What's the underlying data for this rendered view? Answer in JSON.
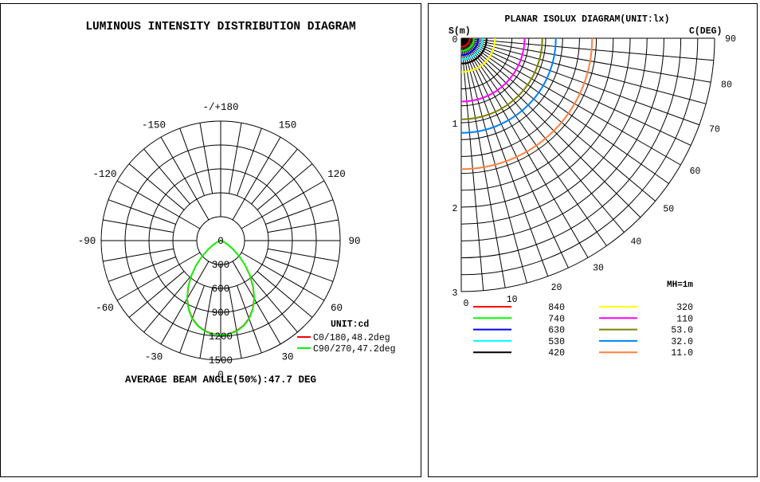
{
  "left_panel": {
    "title": "LUMINOUS INTENSITY DISTRIBUTION DIAGRAM",
    "unit_label": "UNIT:cd",
    "footer": "AVERAGE BEAM ANGLE(50%):47.7 DEG"
  },
  "right_panel": {
    "title": "PLANAR ISOLUX DIAGRAM(UNIT:lx)",
    "y_axis_label": "S(m)",
    "c_axis_label": "C(DEG)",
    "mh_label": "MH=1m"
  },
  "chart_data": [
    {
      "type": "polar",
      "title": "LUMINOUS INTENSITY DISTRIBUTION DIAGRAM",
      "angle_labels": [
        {
          "angle": 180,
          "text": "-/+180"
        },
        {
          "angle": 150,
          "text": "150"
        },
        {
          "angle": -150,
          "text": "-150"
        },
        {
          "angle": 120,
          "text": "120"
        },
        {
          "angle": -120,
          "text": "-120"
        },
        {
          "angle": 90,
          "text": "90"
        },
        {
          "angle": -90,
          "text": "-90"
        },
        {
          "angle": 60,
          "text": "60"
        },
        {
          "angle": -60,
          "text": "-60"
        },
        {
          "angle": 30,
          "text": "30"
        },
        {
          "angle": -30,
          "text": "-30"
        },
        {
          "angle": 0,
          "text": "0"
        }
      ],
      "radial_ticks": [
        0,
        300,
        600,
        900,
        1200,
        1500
      ],
      "rmax": 1500,
      "unit": "UNIT:cd",
      "series": [
        {
          "name": "C0/180,48.2deg",
          "color": "#ff0000",
          "angles": [
            0,
            5,
            10,
            15,
            20,
            25,
            30,
            35,
            40,
            45,
            50,
            55,
            60,
            65,
            70,
            80,
            90
          ],
          "values": [
            1185,
            1175,
            1150,
            1105,
            1040,
            950,
            840,
            710,
            570,
            430,
            300,
            190,
            110,
            55,
            25,
            5,
            0
          ]
        },
        {
          "name": "C90/270,47.2deg",
          "color": "#00ff00",
          "angles": [
            0,
            5,
            10,
            15,
            20,
            25,
            30,
            35,
            40,
            45,
            50,
            55,
            60,
            65,
            70,
            80,
            90
          ],
          "values": [
            1185,
            1178,
            1155,
            1110,
            1045,
            955,
            845,
            715,
            575,
            435,
            305,
            195,
            115,
            60,
            28,
            6,
            0
          ]
        }
      ],
      "footer": "AVERAGE BEAM ANGLE(50%):47.7 DEG"
    },
    {
      "type": "isolux",
      "title": "PLANAR ISOLUX DIAGRAM(UNIT:lx)",
      "s_ticks": [
        0,
        1,
        2,
        3
      ],
      "c_ticks": [
        0,
        10,
        20,
        30,
        40,
        50,
        60,
        70,
        80,
        90
      ],
      "s_max": 3,
      "mounting_height": "MH=1m",
      "levels": [
        {
          "value": "840",
          "color": "#ff0000",
          "radius_m": 0.1
        },
        {
          "value": "740",
          "color": "#00ff00",
          "radius_m": 0.15
        },
        {
          "value": "630",
          "color": "#0000ff",
          "radius_m": 0.2
        },
        {
          "value": "530",
          "color": "#00ffff",
          "radius_m": 0.25
        },
        {
          "value": "420",
          "color": "#000000",
          "radius_m": 0.3
        },
        {
          "value": "320",
          "color": "#ffff00",
          "radius_m": 0.4
        },
        {
          "value": "110",
          "color": "#ff00ff",
          "radius_m": 0.75
        },
        {
          "value": "53.0",
          "color": "#808000",
          "radius_m": 0.96
        },
        {
          "value": "32.0",
          "color": "#0080ff",
          "radius_m": 1.12
        },
        {
          "value": "11.0",
          "color": "#ff8040",
          "radius_m": 1.55
        }
      ]
    }
  ]
}
